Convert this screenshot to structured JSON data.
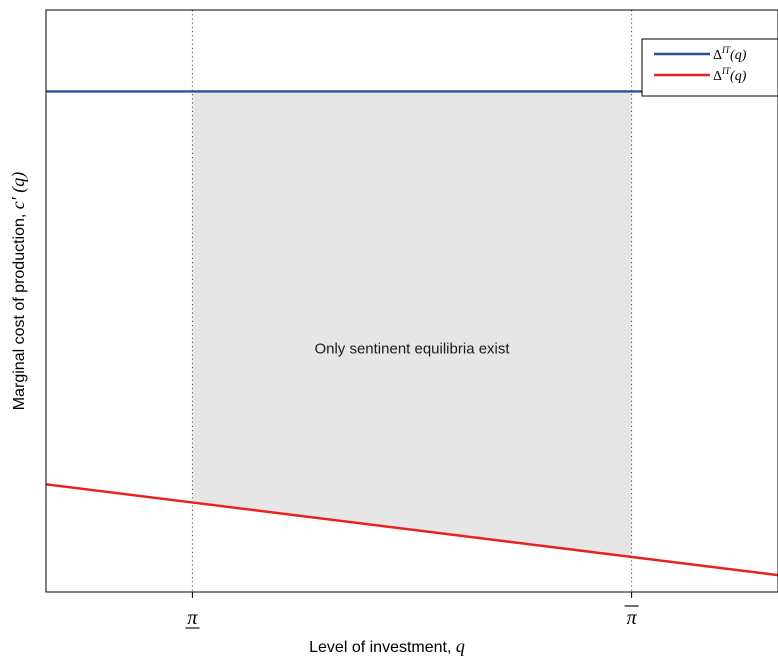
{
  "chart_data": {
    "type": "line",
    "title": "",
    "xlabel": "Level of investment, q",
    "ylabel": "Marginal cost of production, c′ (q)",
    "x_ticks": [
      {
        "label": "π",
        "bar": "under",
        "x": 0.2
      },
      {
        "label": "π",
        "bar": "over",
        "x": 0.8
      }
    ],
    "xlim": [
      0,
      1
    ],
    "ylim": [
      0,
      1
    ],
    "grid": false,
    "legend_position": "top-right",
    "series": [
      {
        "name": "Δ^IT(q)",
        "color": "#2b4fa0",
        "x": [
          0,
          1
        ],
        "y": [
          0.86,
          0.86
        ]
      },
      {
        "name": "Δ^IT(q)",
        "color": "#e8211e",
        "x": [
          0,
          1
        ],
        "y": [
          0.185,
          0.029
        ]
      }
    ],
    "shaded_region": {
      "x": [
        0.2,
        0.8
      ],
      "color": "#e6e6e6",
      "label": "Only sentinent equilibria exist"
    },
    "vertical_lines": [
      0.2,
      0.8
    ]
  }
}
